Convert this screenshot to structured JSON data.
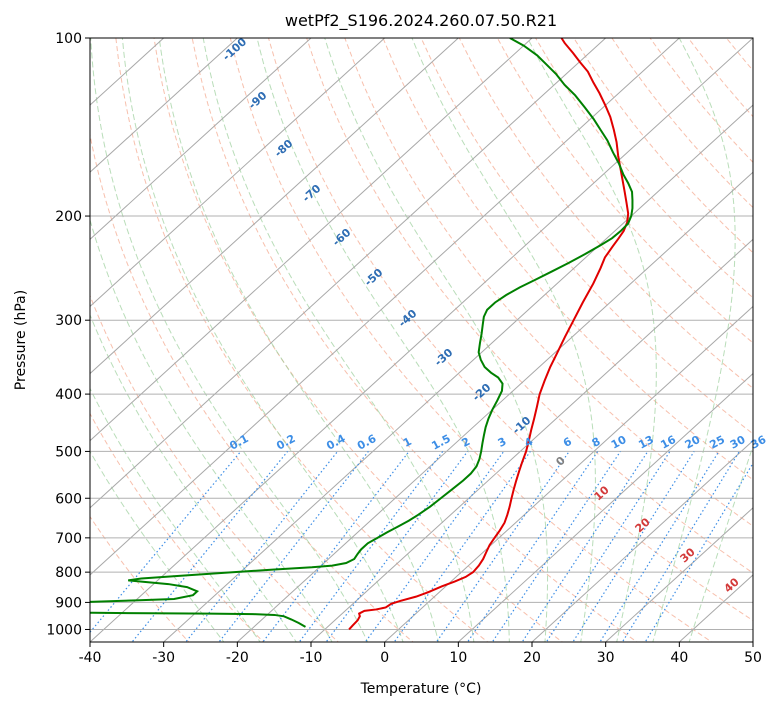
{
  "chart_data": {
    "type": "line",
    "subtype": "skew-t log-p diagram",
    "title": "wetPf2_S196.2024.260.07.50.R21",
    "xlabel": "Temperature (°C)",
    "ylabel": "Pressure (hPa)",
    "xlim": [
      -40,
      50
    ],
    "ylim": [
      1050,
      100
    ],
    "y_scale": "log",
    "grid": true,
    "x_ticks": [
      -40,
      -30,
      -20,
      -10,
      0,
      10,
      20,
      30,
      40,
      50
    ],
    "y_ticks": [
      100,
      200,
      300,
      400,
      500,
      600,
      700,
      800,
      900,
      1000
    ],
    "series": [
      {
        "color": "#e00000",
        "role": "temperature",
        "points": [
          [
            -6.7,
            1000
          ],
          [
            -6.8,
            985
          ],
          [
            -6.9,
            965
          ],
          [
            -7.2,
            950
          ],
          [
            -7.7,
            940
          ],
          [
            -7.4,
            930
          ],
          [
            -6.0,
            925
          ],
          [
            -5.0,
            918
          ],
          [
            -4.8,
            905
          ],
          [
            -4.0,
            895
          ],
          [
            -2.5,
            880
          ],
          [
            -1.5,
            865
          ],
          [
            -0.5,
            845
          ],
          [
            0.5,
            830
          ],
          [
            1.3,
            815
          ],
          [
            1.6,
            800
          ],
          [
            1.4,
            780
          ],
          [
            1.0,
            760
          ],
          [
            0.4,
            740
          ],
          [
            -0.2,
            720
          ],
          [
            -0.6,
            700
          ],
          [
            -1.0,
            680
          ],
          [
            -1.5,
            660
          ],
          [
            -2.3,
            640
          ],
          [
            -3.2,
            620
          ],
          [
            -4.2,
            600
          ],
          [
            -5.2,
            580
          ],
          [
            -6.2,
            560
          ],
          [
            -7.2,
            540
          ],
          [
            -8.2,
            520
          ],
          [
            -9.2,
            500
          ],
          [
            -10.4,
            480
          ],
          [
            -11.7,
            460
          ],
          [
            -13.0,
            440
          ],
          [
            -14.4,
            420
          ],
          [
            -15.9,
            400
          ],
          [
            -17.2,
            380
          ],
          [
            -18.5,
            360
          ],
          [
            -19.7,
            340
          ],
          [
            -21.0,
            320
          ],
          [
            -22.3,
            300
          ],
          [
            -23.7,
            280
          ],
          [
            -25.1,
            260
          ],
          [
            -26.4,
            245
          ],
          [
            -27.4,
            235
          ],
          [
            -28.0,
            225
          ],
          [
            -28.4,
            218
          ],
          [
            -28.8,
            212
          ],
          [
            -29.6,
            205
          ],
          [
            -30.8,
            198
          ],
          [
            -32.6,
            190
          ],
          [
            -34.5,
            182
          ],
          [
            -36.5,
            174
          ],
          [
            -38.6,
            166
          ],
          [
            -40.8,
            158
          ],
          [
            -43.0,
            150
          ],
          [
            -45.2,
            143
          ],
          [
            -47.6,
            136
          ],
          [
            -50.0,
            130
          ],
          [
            -52.6,
            124
          ],
          [
            -55.0,
            119
          ],
          [
            -57.4,
            114
          ],
          [
            -59.8,
            110
          ],
          [
            -62.2,
            106
          ],
          [
            -64.8,
            102
          ],
          [
            -66.0,
            100
          ]
        ]
      },
      {
        "color": "#008000",
        "role": "dewpoint",
        "points": [
          [
            -13.0,
            990
          ],
          [
            -14.5,
            975
          ],
          [
            -16.0,
            962
          ],
          [
            -17.5,
            950
          ],
          [
            -19.0,
            945
          ],
          [
            -22.0,
            942
          ],
          [
            -28.0,
            940
          ],
          [
            -36.0,
            939
          ],
          [
            -44.0,
            937
          ],
          [
            -50.0,
            935
          ],
          [
            -54.0,
            915
          ],
          [
            -52.0,
            905
          ],
          [
            -46.0,
            898
          ],
          [
            -40.0,
            893
          ],
          [
            -35.0,
            888
          ],
          [
            -33.0,
            875
          ],
          [
            -33.0,
            862
          ],
          [
            -35.0,
            848
          ],
          [
            -38.0,
            838
          ],
          [
            -42.0,
            830
          ],
          [
            -44.0,
            826
          ],
          [
            -42.5,
            820
          ],
          [
            -38.0,
            812
          ],
          [
            -32.0,
            802
          ],
          [
            -26.0,
            792
          ],
          [
            -21.0,
            785
          ],
          [
            -18.5,
            780
          ],
          [
            -17.0,
            772
          ],
          [
            -16.5,
            760
          ],
          [
            -16.8,
            745
          ],
          [
            -17.0,
            732
          ],
          [
            -17.0,
            715
          ],
          [
            -16.5,
            700
          ],
          [
            -16.0,
            685
          ],
          [
            -15.4,
            670
          ],
          [
            -14.8,
            655
          ],
          [
            -14.4,
            640
          ],
          [
            -14.0,
            620
          ],
          [
            -13.8,
            600
          ],
          [
            -13.6,
            580
          ],
          [
            -13.4,
            560
          ],
          [
            -13.4,
            545
          ],
          [
            -13.7,
            530
          ],
          [
            -14.4,
            515
          ],
          [
            -15.3,
            500
          ],
          [
            -16.3,
            485
          ],
          [
            -17.3,
            470
          ],
          [
            -18.3,
            455
          ],
          [
            -19.2,
            440
          ],
          [
            -20.0,
            425
          ],
          [
            -20.7,
            410
          ],
          [
            -21.5,
            395
          ],
          [
            -22.5,
            384
          ],
          [
            -24.0,
            375
          ],
          [
            -25.7,
            368
          ],
          [
            -27.4,
            360
          ],
          [
            -29.0,
            350
          ],
          [
            -30.4,
            340
          ],
          [
            -31.6,
            328
          ],
          [
            -32.8,
            316
          ],
          [
            -34.0,
            305
          ],
          [
            -35.0,
            296
          ],
          [
            -35.6,
            288
          ],
          [
            -35.6,
            280
          ],
          [
            -35.2,
            272
          ],
          [
            -34.5,
            264
          ],
          [
            -33.5,
            256
          ],
          [
            -32.5,
            248
          ],
          [
            -31.5,
            240
          ],
          [
            -30.6,
            232
          ],
          [
            -29.8,
            224
          ],
          [
            -29.3,
            218
          ],
          [
            -29.2,
            212
          ],
          [
            -29.3,
            206
          ],
          [
            -30.0,
            200
          ],
          [
            -31.0,
            194
          ],
          [
            -32.2,
            188
          ],
          [
            -33.5,
            182
          ],
          [
            -35.3,
            176
          ],
          [
            -37.3,
            170
          ],
          [
            -39.5,
            163
          ],
          [
            -42.0,
            156
          ],
          [
            -44.5,
            149
          ],
          [
            -47.0,
            143
          ],
          [
            -49.6,
            137
          ],
          [
            -52.5,
            131
          ],
          [
            -55.6,
            125
          ],
          [
            -58.6,
            120
          ],
          [
            -61.4,
            115
          ],
          [
            -64.0,
            111
          ],
          [
            -66.7,
            107
          ],
          [
            -70.0,
            103
          ],
          [
            -73.0,
            100
          ]
        ]
      }
    ],
    "isotherm_labels": [
      "-100",
      "-90",
      "-80",
      "-70",
      "-60",
      "-50",
      "-40",
      "-30",
      "-20",
      "-10"
    ],
    "isotherm_label_color": "#2e6db4",
    "mixing_ratio_labels": [
      "0.1",
      "0.2",
      "0.4",
      "0.6",
      "1",
      "1.5",
      "2",
      "3",
      "4",
      "6",
      "8",
      "10",
      "13",
      "16",
      "20",
      "25",
      "30",
      "36"
    ],
    "mixing_ratio_label_color": "#3d8ee6",
    "temperature_labels_low": [
      "0",
      "10",
      "20",
      "30",
      "40"
    ],
    "temperature_label_colors": {
      "0": "#808080",
      "warm": "#d33a3a"
    }
  }
}
